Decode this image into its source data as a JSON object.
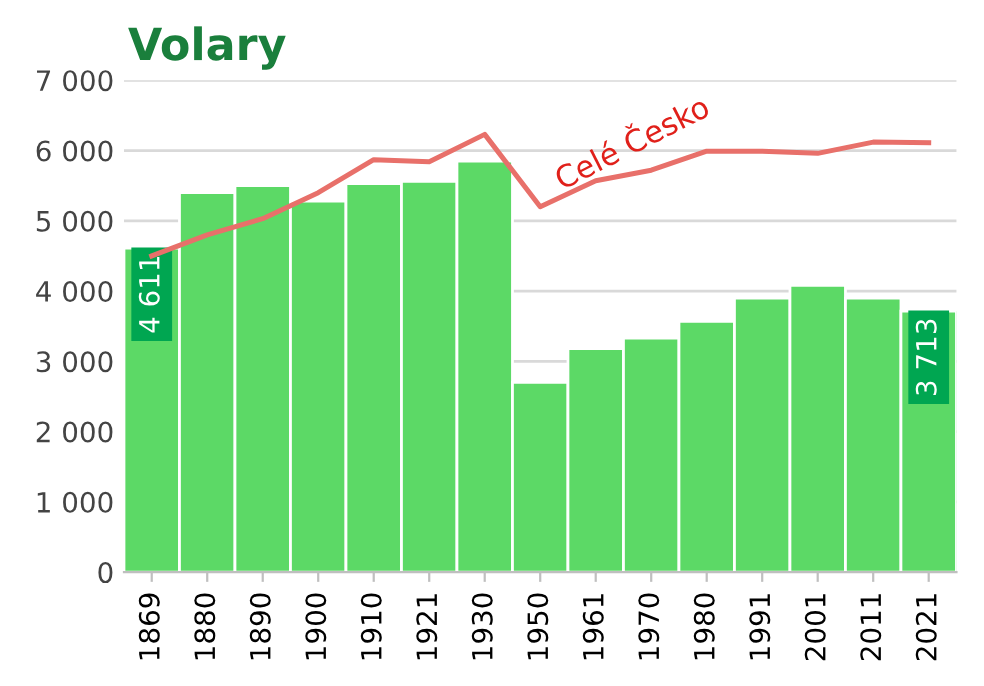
{
  "chart_data": {
    "type": "bar",
    "title": "Volary",
    "categories": [
      "1869",
      "1880",
      "1890",
      "1900",
      "1910",
      "1921",
      "1930",
      "1950",
      "1961",
      "1970",
      "1980",
      "1991",
      "2001",
      "2011",
      "2021"
    ],
    "series": [
      {
        "color": "#5cd966",
        "values": [
          4611,
          5400,
          5500,
          5280,
          5530,
          5560,
          5850,
          2700,
          3180,
          3330,
          3570,
          3900,
          4080,
          3900,
          3713
        ],
        "value_labels": [
          "4 611",
          null,
          null,
          null,
          null,
          null,
          null,
          null,
          null,
          null,
          null,
          null,
          null,
          null,
          "3 713"
        ]
      },
      {
        "type": "line",
        "name": "Celé Česko",
        "color": "#e8706a",
        "values": [
          4500,
          4800,
          5030,
          5400,
          5870,
          5840,
          6230,
          5200,
          5570,
          5720,
          5990,
          5990,
          5960,
          6120,
          6110
        ]
      }
    ],
    "ylim": [
      0,
      7000
    ],
    "yticks": [
      0,
      {
        "value": 1000,
        "label": "1 000"
      },
      {
        "value": 2000,
        "label": "2 000"
      },
      {
        "value": 3000,
        "label": "3 000"
      },
      {
        "value": 4000,
        "label": "4 000"
      },
      {
        "value": 5000,
        "label": "5 000"
      },
      {
        "value": 6000,
        "label": "6 000"
      },
      {
        "value": 7000,
        "label": "7 000"
      }
    ],
    "grid": "y",
    "legend": false,
    "marker": "none",
    "line_style": "solid"
  }
}
